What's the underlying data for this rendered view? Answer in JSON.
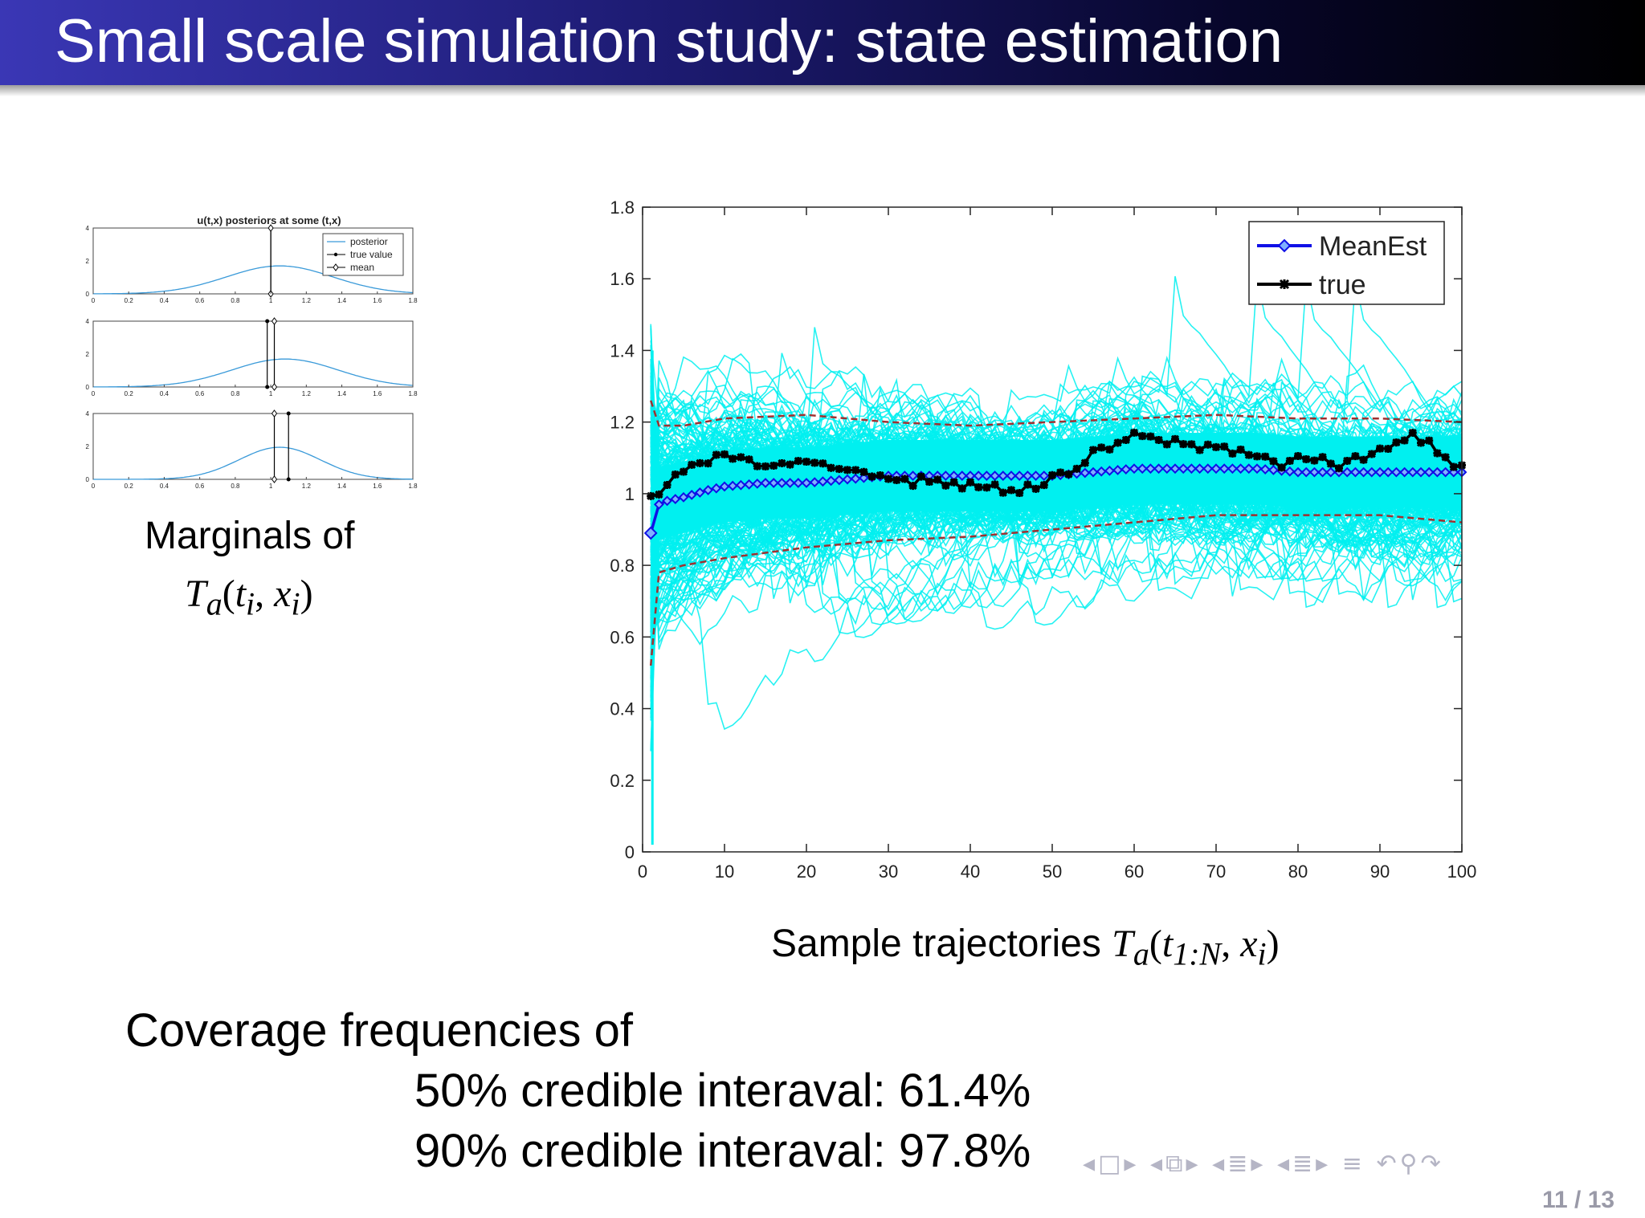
{
  "slide": {
    "title": "Small scale simulation study: state estimation",
    "left_caption_line1": "Marginals of",
    "left_caption_math": {
      "T": "T",
      "a": "a",
      "open": "(",
      "t": "t",
      "i1": "i",
      "comma": ", ",
      "x": "x",
      "i2": "i",
      "close": ")"
    },
    "right_caption_text": "Sample trajectories ",
    "right_caption_math": {
      "T": "T",
      "a": "a",
      "open": "(",
      "t": "t",
      "sub": "1:N",
      "comma": ", ",
      "x": "x",
      "i": "i",
      "close": ")"
    },
    "coverage_heading": "Coverage frequencies of",
    "coverage_50": "50% credible interaval: 61.4%",
    "coverage_90": "90% credible interaval: 97.8%",
    "page_number": "11 / 13",
    "nav_icons": [
      "nav-prev-frame-icon",
      "nav-frame-icon",
      "nav-next-frame-icon",
      "nav-prev-subsection-icon",
      "nav-subsection-icon",
      "nav-next-subsection-icon",
      "nav-prev-section-icon",
      "nav-section-icon",
      "nav-next-section-icon",
      "nav-prev-page-icon",
      "nav-page-icon",
      "nav-next-page-icon",
      "nav-outline-icon",
      "nav-back-icon",
      "nav-search-icon",
      "nav-forward-icon"
    ]
  },
  "chart_data": [
    {
      "type": "line",
      "title": "u(t,x) posteriors at some (t,x)",
      "xlim": [
        0,
        1.8
      ],
      "ylim": [
        0,
        4
      ],
      "xticks": [
        "0",
        "0.2",
        "0.4",
        "0.6",
        "0.8",
        "1",
        "1.2",
        "1.4",
        "1.6",
        "1.8"
      ],
      "yticks": [
        "0",
        "2",
        "4"
      ],
      "legend": {
        "entries": [
          "posterior",
          "true value",
          "mean"
        ],
        "position": "top-right"
      },
      "subplots": [
        {
          "posterior_peak_x": 1.05,
          "posterior_peak_y": 1.7,
          "posterior_sd": 0.3,
          "true_value": 1.0,
          "mean": 1.0
        },
        {
          "posterior_peak_x": 1.08,
          "posterior_peak_y": 1.7,
          "posterior_sd": 0.3,
          "true_value": 0.98,
          "mean": 1.02
        },
        {
          "posterior_peak_x": 1.05,
          "posterior_peak_y": 1.95,
          "posterior_sd": 0.23,
          "true_value": 1.1,
          "mean": 1.02
        }
      ]
    },
    {
      "type": "line",
      "title": "",
      "xlabel": "",
      "ylabel": "",
      "xlim": [
        0,
        100
      ],
      "ylim": [
        0,
        1.8
      ],
      "xticks": [
        "0",
        "10",
        "20",
        "30",
        "40",
        "50",
        "60",
        "70",
        "80",
        "90",
        "100"
      ],
      "yticks": [
        "0",
        "0.2",
        "0.4",
        "0.6",
        "0.8",
        "1",
        "1.2",
        "1.4",
        "1.6",
        "1.8"
      ],
      "legend": {
        "position": "top-right"
      },
      "colors": {
        "samples": "#00f0f0",
        "mean": "#1010e6",
        "true": "#000000",
        "band": "#a03030"
      },
      "series": [
        {
          "name": "MeanEst",
          "x": [
            1,
            2,
            3,
            5,
            8,
            10,
            15,
            20,
            25,
            30,
            35,
            40,
            45,
            50,
            55,
            60,
            65,
            70,
            75,
            80,
            85,
            90,
            95,
            100
          ],
          "y": [
            0.89,
            0.97,
            0.98,
            0.99,
            1.01,
            1.02,
            1.03,
            1.03,
            1.04,
            1.05,
            1.05,
            1.05,
            1.05,
            1.05,
            1.06,
            1.07,
            1.07,
            1.07,
            1.07,
            1.06,
            1.06,
            1.06,
            1.06,
            1.06
          ]
        },
        {
          "name": "true",
          "x": [
            1,
            3,
            5,
            8,
            10,
            12,
            15,
            18,
            20,
            23,
            26,
            30,
            32,
            35,
            38,
            40,
            42,
            45,
            48,
            50,
            53,
            55,
            58,
            60,
            63,
            66,
            68,
            70,
            73,
            75,
            78,
            80,
            83,
            85,
            88,
            90,
            92,
            94,
            96,
            98,
            100
          ],
          "y": [
            1.0,
            1.02,
            1.07,
            1.09,
            1.11,
            1.09,
            1.08,
            1.07,
            1.09,
            1.08,
            1.07,
            1.05,
            1.03,
            1.04,
            1.03,
            1.02,
            1.02,
            1.01,
            1.02,
            1.04,
            1.07,
            1.11,
            1.14,
            1.16,
            1.15,
            1.14,
            1.13,
            1.13,
            1.12,
            1.11,
            1.08,
            1.1,
            1.09,
            1.08,
            1.1,
            1.12,
            1.15,
            1.16,
            1.14,
            1.09,
            1.07
          ]
        },
        {
          "name": "",
          "x": [
            1,
            2,
            5,
            10,
            20,
            30,
            40,
            50,
            60,
            70,
            80,
            90,
            100
          ],
          "y": [
            1.26,
            1.19,
            1.19,
            1.21,
            1.22,
            1.2,
            1.19,
            1.2,
            1.21,
            1.22,
            1.21,
            1.21,
            1.2
          ]
        },
        {
          "name": "",
          "x": [
            1,
            2,
            5,
            10,
            20,
            30,
            40,
            50,
            60,
            70,
            80,
            90,
            100
          ],
          "y": [
            0.52,
            0.78,
            0.8,
            0.82,
            0.85,
            0.87,
            0.88,
            0.9,
            0.92,
            0.94,
            0.94,
            0.94,
            0.92
          ]
        }
      ]
    }
  ]
}
